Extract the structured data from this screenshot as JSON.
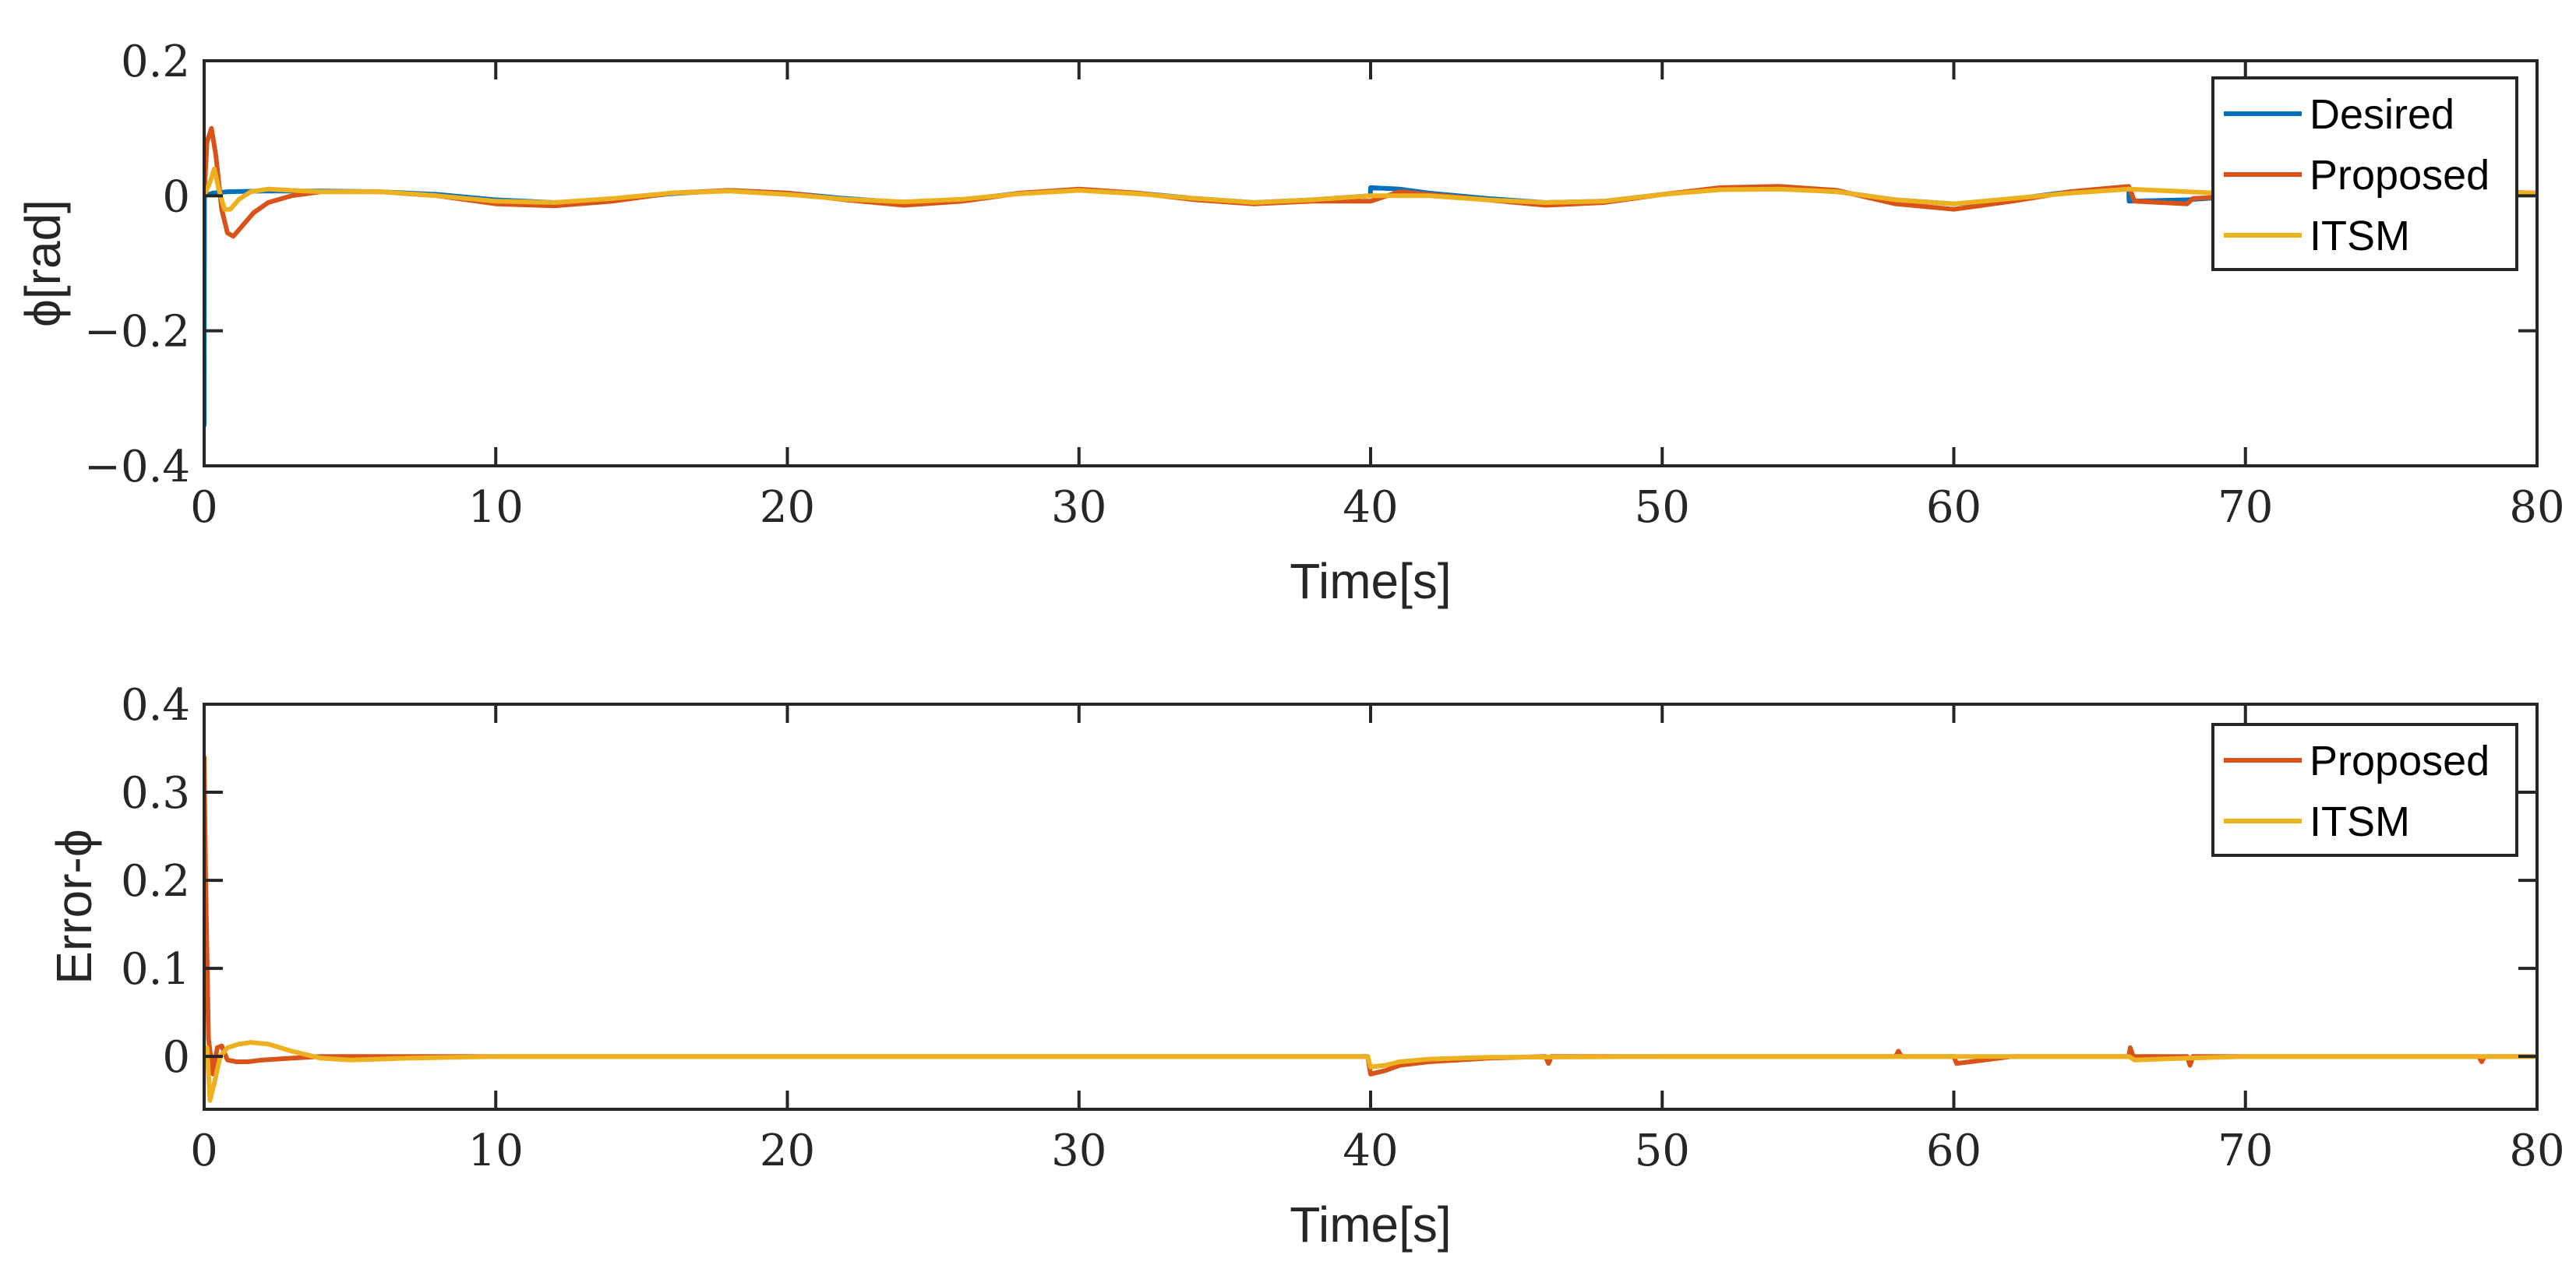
{
  "chart_data": [
    {
      "type": "line",
      "xlabel": "Time[s]",
      "ylabel": "ϕ[rad]",
      "xlim": [
        0,
        80
      ],
      "ylim": [
        -0.4,
        0.2
      ],
      "xticks": [
        0,
        10,
        20,
        30,
        40,
        50,
        60,
        70,
        80
      ],
      "yticks": [
        0.2,
        0,
        -0.2,
        -0.4
      ],
      "xtick_labels": [
        "0",
        "10",
        "20",
        "30",
        "40",
        "50",
        "60",
        "70",
        "80"
      ],
      "ytick_labels": [
        "0.2",
        "0",
        "−0.2",
        "−0.4"
      ],
      "grid": false,
      "legend": "top-right",
      "series": [
        {
          "name": "Desired",
          "color": "#0072BD",
          "x": [
            0,
            0.01,
            0.3,
            0.8,
            2,
            4,
            6,
            8,
            10,
            12,
            14,
            16,
            18,
            20,
            22,
            24,
            26,
            28,
            30,
            32,
            34,
            36,
            38,
            39.99,
            40,
            41,
            42,
            44,
            46,
            48,
            50,
            52,
            54,
            56,
            58,
            60,
            62,
            64,
            66,
            66.01,
            68,
            70,
            72,
            74,
            76,
            78,
            80
          ],
          "y": [
            -0.34,
            0,
            0.004,
            0.006,
            0.007,
            0.007,
            0.006,
            0.002,
            -0.006,
            -0.01,
            -0.006,
            0.003,
            0.008,
            0.004,
            -0.004,
            -0.01,
            -0.006,
            0.004,
            0.009,
            0.004,
            -0.004,
            -0.01,
            -0.006,
            0.0,
            0.012,
            0.01,
            0.004,
            -0.004,
            -0.01,
            -0.008,
            0.002,
            0.01,
            0.012,
            0.006,
            -0.006,
            -0.012,
            -0.005,
            0.006,
            0.012,
            -0.008,
            -0.006,
            0.0,
            0.004,
            0.006,
            0.006,
            0.004,
            0.004
          ]
        },
        {
          "name": "Proposed",
          "color": "#D95319",
          "x": [
            0,
            0.1,
            0.25,
            0.4,
            0.6,
            0.8,
            1.0,
            1.3,
            1.7,
            2.2,
            3,
            4,
            6,
            8,
            10,
            12,
            14,
            16,
            18,
            20,
            22,
            24,
            26,
            28,
            30,
            32,
            34,
            36,
            38,
            40,
            41,
            42,
            44,
            46,
            48,
            50,
            52,
            54,
            56,
            58,
            60,
            62,
            64,
            66,
            66.2,
            68,
            68.2,
            70,
            72,
            74,
            76,
            78,
            80
          ],
          "y": [
            0,
            0.08,
            0.1,
            0.06,
            -0.02,
            -0.055,
            -0.06,
            -0.045,
            -0.025,
            -0.01,
            0.0,
            0.006,
            0.006,
            0.0,
            -0.012,
            -0.015,
            -0.008,
            0.004,
            0.008,
            0.004,
            -0.006,
            -0.014,
            -0.008,
            0.004,
            0.01,
            0.004,
            -0.006,
            -0.012,
            -0.008,
            -0.008,
            0.006,
            0.002,
            -0.006,
            -0.014,
            -0.01,
            0.002,
            0.012,
            0.014,
            0.008,
            -0.012,
            -0.02,
            -0.008,
            0.006,
            0.014,
            -0.008,
            -0.012,
            -0.004,
            0.0,
            0.004,
            0.006,
            0.008,
            0.006,
            0.004
          ]
        },
        {
          "name": "ITSM",
          "color": "#EDB120",
          "x": [
            0,
            0.2,
            0.35,
            0.5,
            0.7,
            0.9,
            1.2,
            1.6,
            2.2,
            3,
            4,
            6,
            8,
            10,
            12,
            14,
            16,
            18,
            20,
            22,
            24,
            26,
            28,
            30,
            32,
            34,
            36,
            38,
            40,
            42,
            44,
            46,
            48,
            50,
            52,
            54,
            56,
            58,
            60,
            62,
            64,
            66,
            68,
            70,
            72,
            74,
            76,
            78,
            80
          ],
          "y": [
            0,
            0.02,
            0.04,
            0.01,
            -0.02,
            -0.02,
            -0.005,
            0.006,
            0.01,
            0.008,
            0.006,
            0.006,
            0.0,
            -0.008,
            -0.01,
            -0.004,
            0.004,
            0.007,
            0.002,
            -0.005,
            -0.009,
            -0.005,
            0.003,
            0.008,
            0.003,
            -0.004,
            -0.01,
            -0.006,
            0.0,
            0.0,
            -0.006,
            -0.01,
            -0.008,
            0.002,
            0.009,
            0.01,
            0.006,
            -0.006,
            -0.012,
            -0.004,
            0.004,
            0.01,
            0.006,
            0.002,
            0.004,
            0.006,
            0.006,
            0.004,
            0.004
          ]
        }
      ]
    },
    {
      "type": "line",
      "xlabel": "Time[s]",
      "ylabel": "Error-ϕ",
      "xlim": [
        0,
        80
      ],
      "ylim": [
        -0.06,
        0.4
      ],
      "xticks": [
        0,
        10,
        20,
        30,
        40,
        50,
        60,
        70,
        80
      ],
      "yticks": [
        0.4,
        0.3,
        0.2,
        0.1,
        0
      ],
      "xtick_labels": [
        "0",
        "10",
        "20",
        "30",
        "40",
        "50",
        "60",
        "70",
        "80"
      ],
      "ytick_labels": [
        "0.4",
        "0.3",
        "0.2",
        "0.1",
        "0"
      ],
      "grid": false,
      "legend": "top-right",
      "series": [
        {
          "name": "Proposed",
          "color": "#D95319",
          "x": [
            0,
            0.05,
            0.15,
            0.3,
            0.45,
            0.6,
            0.8,
            1.1,
            1.5,
            2,
            3,
            4,
            6,
            10,
            20,
            30,
            39.9,
            40,
            40.5,
            41,
            42,
            44,
            46,
            46.1,
            46.2,
            50,
            58,
            58.1,
            58.2,
            60,
            60.1,
            62,
            66,
            66.05,
            66.15,
            68,
            68.1,
            68.2,
            70,
            78,
            78.1,
            78.2,
            80
          ],
          "y": [
            0.34,
            0.2,
            0.02,
            -0.02,
            0.01,
            0.012,
            -0.004,
            -0.006,
            -0.006,
            -0.004,
            -0.002,
            0.0,
            0.0,
            0.0,
            0.0,
            0.0,
            0.0,
            -0.02,
            -0.016,
            -0.01,
            -0.006,
            -0.002,
            0.0,
            -0.008,
            0.0,
            0.0,
            0.0,
            0.006,
            0.0,
            0.0,
            -0.008,
            0.0,
            0.0,
            0.01,
            0.0,
            0.0,
            -0.01,
            0.0,
            0.0,
            0.0,
            -0.006,
            0.0,
            0.0
          ]
        },
        {
          "name": "ITSM",
          "color": "#EDB120",
          "x": [
            0,
            0.1,
            0.2,
            0.35,
            0.55,
            0.8,
            1.2,
            1.6,
            2.2,
            3,
            4,
            5,
            7,
            10,
            20,
            30,
            39.9,
            40,
            40.5,
            41,
            42,
            44,
            50,
            60,
            66,
            66.2,
            68,
            70,
            80
          ],
          "y": [
            0,
            0.01,
            -0.05,
            -0.03,
            0.0,
            0.01,
            0.014,
            0.016,
            0.014,
            0.006,
            -0.002,
            -0.004,
            -0.002,
            0.0,
            0.0,
            0.0,
            0.0,
            -0.012,
            -0.01,
            -0.006,
            -0.003,
            -0.001,
            0.0,
            0.0,
            0.0,
            -0.004,
            -0.002,
            0.0,
            0.0
          ]
        }
      ]
    }
  ]
}
